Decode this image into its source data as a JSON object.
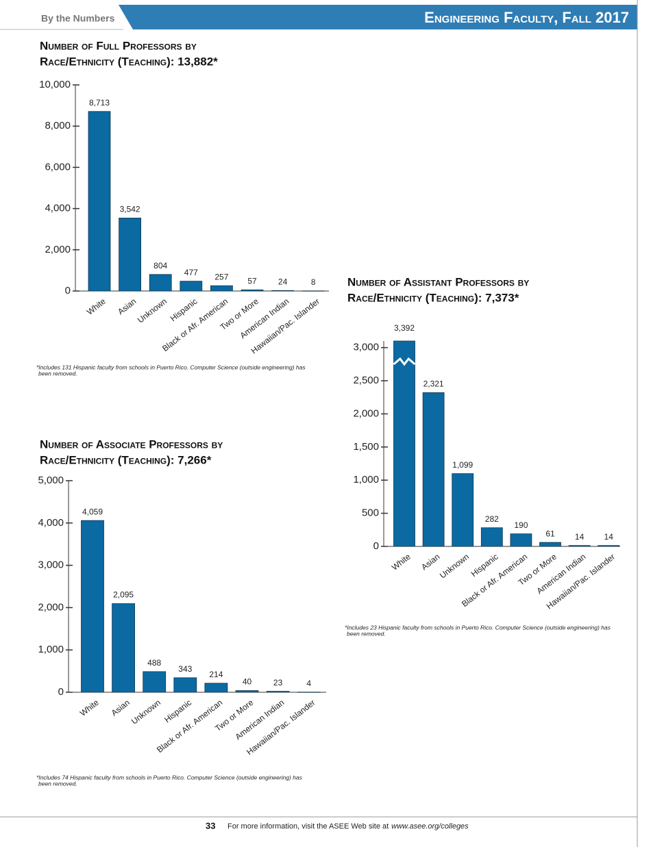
{
  "header": {
    "section": "By the Numbers",
    "title": "Engineering Faculty, Fall 2017"
  },
  "chart_data": [
    {
      "type": "bar",
      "title": [
        "Number of Full Professors by",
        "Race/Ethnicity (Teaching): 13,882*"
      ],
      "categories": [
        "White",
        "Asian",
        "Unknown",
        "Hispanic",
        "Black or Afr. American",
        "Two or More",
        "American Indian",
        "Hawaiian/Pac. Islander"
      ],
      "values": [
        8713,
        3542,
        804,
        477,
        257,
        57,
        24,
        8
      ],
      "value_labels": [
        "8,713",
        "3,542",
        "804",
        "477",
        "257",
        "57",
        "24",
        "8"
      ],
      "color": "#0b6aa2",
      "ylim": [
        0,
        10000
      ],
      "yticks": [
        0,
        {
          "value": 2000,
          "label": "2,000"
        },
        {
          "value": 4000,
          "label": "4,000"
        },
        {
          "value": 6000,
          "label": "6,000"
        },
        {
          "value": 8000,
          "label": "8,000"
        },
        {
          "value": 10000,
          "label": "10,000"
        }
      ],
      "footnote": [
        "*Includes 131 Hispanic faculty from schools in Puerto Rico. Computer Science (outside engineering) has",
        "been removed."
      ]
    },
    {
      "type": "bar",
      "title": [
        "Number of Associate Professors by",
        "Race/Ethnicity (Teaching): 7,266*"
      ],
      "categories": [
        "White",
        "Asian",
        "Unknown",
        "Hispanic",
        "Black or Afr. American",
        "Two or More",
        "American Indian",
        "Hawaiian/Pac. Islander"
      ],
      "values": [
        4059,
        2095,
        488,
        343,
        214,
        40,
        23,
        4
      ],
      "value_labels": [
        "4,059",
        "2,095",
        "488",
        "343",
        "214",
        "40",
        "23",
        "4"
      ],
      "color": "#0b6aa2",
      "ylim": [
        0,
        5000
      ],
      "yticks": [
        0,
        {
          "value": 1000,
          "label": "1,000"
        },
        {
          "value": 2000,
          "label": "2,000"
        },
        {
          "value": 3000,
          "label": "3,000"
        },
        {
          "value": 4000,
          "label": "4,000"
        },
        {
          "value": 5000,
          "label": "5,000"
        }
      ],
      "footnote": [
        "*Includes 74 Hispanic faculty from schools in Puerto Rico. Computer Science (outside engineering) has",
        "been removed."
      ]
    },
    {
      "type": "bar",
      "title": [
        "Number of Assistant Professors by",
        "Race/Ethnicity (Teaching): 7,373*"
      ],
      "categories": [
        "White",
        "Asian",
        "Unknown",
        "Hispanic",
        "Black or Afr. American",
        "Two or More",
        "American Indian",
        "Hawaiian/Pac. Islander"
      ],
      "values": [
        3392,
        2321,
        1099,
        282,
        190,
        61,
        14,
        14
      ],
      "value_labels": [
        "3,392",
        "2,321",
        "1,099",
        "282",
        "190",
        "61",
        "14",
        "14"
      ],
      "color": "#0b6aa2",
      "ylim": [
        0,
        3100
      ],
      "yticks": [
        0,
        500,
        {
          "value": 1000,
          "label": "1,000"
        },
        {
          "value": 1500,
          "label": "1,500"
        },
        {
          "value": 2000,
          "label": "2,000"
        },
        {
          "value": 2500,
          "label": "2,500"
        },
        {
          "value": 3000,
          "label": "3,000"
        }
      ],
      "footnote": [
        "*Includes 23 Hispanic faculty from schools in Puerto Rico. Computer Science (outside engineering) has",
        "been removed."
      ]
    }
  ],
  "footer": {
    "page": "33",
    "text": "For more information, visit the ASEE Web site at",
    "url": "www.asee.org/colleges"
  }
}
